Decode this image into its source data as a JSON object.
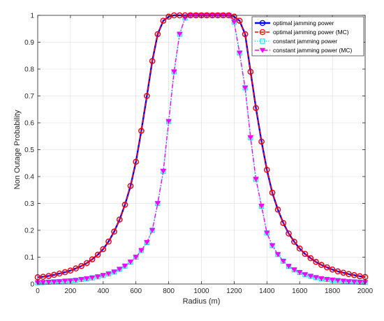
{
  "chart_data": {
    "type": "line",
    "xlabel": "Radius (m)",
    "ylabel": "Non Outage Probability",
    "xlim": [
      0,
      2000
    ],
    "ylim": [
      0,
      1
    ],
    "xticks": [
      0,
      200,
      400,
      600,
      800,
      1000,
      1200,
      1400,
      1600,
      1800,
      2000
    ],
    "yticks": [
      0,
      0.1,
      0.2,
      0.3,
      0.4,
      0.5,
      0.6,
      0.7,
      0.8,
      0.9,
      1
    ],
    "xtick_labels": [
      "0",
      "200",
      "400",
      "600",
      "800",
      "1000",
      "1200",
      "1400",
      "1600",
      "1800",
      "2000"
    ],
    "ytick_labels": [
      "0",
      "0.1",
      "0.2",
      "0.3",
      "0.4",
      "0.5",
      "0.6",
      "0.7",
      "0.8",
      "0.9",
      "1"
    ],
    "grid": true,
    "legend_position": "top-right",
    "x": [
      0,
      33,
      67,
      100,
      133,
      167,
      200,
      233,
      267,
      300,
      333,
      367,
      400,
      433,
      467,
      500,
      533,
      567,
      600,
      633,
      667,
      700,
      733,
      767,
      800,
      833,
      867,
      900,
      933,
      967,
      1000,
      1033,
      1067,
      1100,
      1133,
      1167,
      1200,
      1233,
      1267,
      1300,
      1333,
      1367,
      1400,
      1433,
      1467,
      1500,
      1533,
      1567,
      1600,
      1633,
      1667,
      1700,
      1733,
      1767,
      1800,
      1833,
      1867,
      1900,
      1933,
      1967,
      2000
    ],
    "series": [
      {
        "name": "optimal jamming power",
        "color": "#0000ff",
        "line_style": "solid",
        "marker": "circle",
        "values": [
          0.025,
          0.027,
          0.03,
          0.034,
          0.039,
          0.044,
          0.05,
          0.058,
          0.067,
          0.078,
          0.092,
          0.109,
          0.13,
          0.158,
          0.195,
          0.24,
          0.295,
          0.365,
          0.455,
          0.57,
          0.7,
          0.83,
          0.93,
          0.98,
          0.995,
          1.0,
          1.0,
          1.0,
          1.0,
          1.0,
          1.0,
          1.0,
          1.0,
          1.0,
          1.0,
          1.0,
          0.995,
          0.98,
          0.93,
          0.79,
          0.655,
          0.53,
          0.425,
          0.34,
          0.277,
          0.227,
          0.188,
          0.157,
          0.132,
          0.112,
          0.096,
          0.082,
          0.071,
          0.062,
          0.054,
          0.047,
          0.042,
          0.037,
          0.033,
          0.029,
          0.026
        ]
      },
      {
        "name": "optimal jamming power (MC)",
        "color": "#ff0000",
        "line_style": "dashed",
        "marker": "circle",
        "values": [
          0.025,
          0.027,
          0.03,
          0.034,
          0.039,
          0.044,
          0.05,
          0.058,
          0.067,
          0.078,
          0.092,
          0.109,
          0.13,
          0.158,
          0.195,
          0.24,
          0.295,
          0.365,
          0.455,
          0.57,
          0.7,
          0.83,
          0.93,
          0.98,
          0.995,
          1.0,
          1.0,
          1.0,
          1.0,
          1.0,
          1.0,
          1.0,
          1.0,
          1.0,
          1.0,
          1.0,
          0.995,
          0.98,
          0.93,
          0.79,
          0.655,
          0.53,
          0.425,
          0.34,
          0.277,
          0.227,
          0.188,
          0.157,
          0.132,
          0.112,
          0.096,
          0.082,
          0.071,
          0.062,
          0.054,
          0.047,
          0.042,
          0.037,
          0.033,
          0.029,
          0.026
        ]
      },
      {
        "name": "constant jamming power",
        "color": "#00e5ee",
        "line_style": "dotted",
        "marker": "square",
        "values": [
          0.005,
          0.006,
          0.007,
          0.008,
          0.009,
          0.011,
          0.012,
          0.014,
          0.017,
          0.02,
          0.023,
          0.027,
          0.032,
          0.038,
          0.045,
          0.055,
          0.067,
          0.082,
          0.1,
          0.125,
          0.155,
          0.2,
          0.3,
          0.42,
          0.605,
          0.79,
          0.93,
          0.99,
          1.0,
          1.0,
          1.0,
          1.0,
          1.0,
          1.0,
          1.0,
          1.0,
          0.975,
          0.86,
          0.73,
          0.545,
          0.39,
          0.29,
          0.19,
          0.143,
          0.11,
          0.085,
          0.066,
          0.053,
          0.043,
          0.035,
          0.029,
          0.024,
          0.02,
          0.017,
          0.015,
          0.013,
          0.011,
          0.009,
          0.008,
          0.007,
          0.006
        ]
      },
      {
        "name": "constant jamming power (MC)",
        "color": "#ff00ff",
        "line_style": "dashdot",
        "marker": "triangle-down",
        "values": [
          0.005,
          0.006,
          0.007,
          0.008,
          0.009,
          0.011,
          0.012,
          0.014,
          0.017,
          0.02,
          0.023,
          0.027,
          0.032,
          0.038,
          0.045,
          0.055,
          0.067,
          0.082,
          0.1,
          0.125,
          0.155,
          0.2,
          0.3,
          0.42,
          0.605,
          0.79,
          0.93,
          0.99,
          1.0,
          1.0,
          1.0,
          1.0,
          1.0,
          1.0,
          1.0,
          1.0,
          0.975,
          0.86,
          0.73,
          0.545,
          0.39,
          0.29,
          0.19,
          0.143,
          0.11,
          0.085,
          0.066,
          0.053,
          0.043,
          0.035,
          0.029,
          0.024,
          0.02,
          0.017,
          0.015,
          0.013,
          0.011,
          0.009,
          0.008,
          0.007,
          0.006
        ]
      }
    ]
  }
}
